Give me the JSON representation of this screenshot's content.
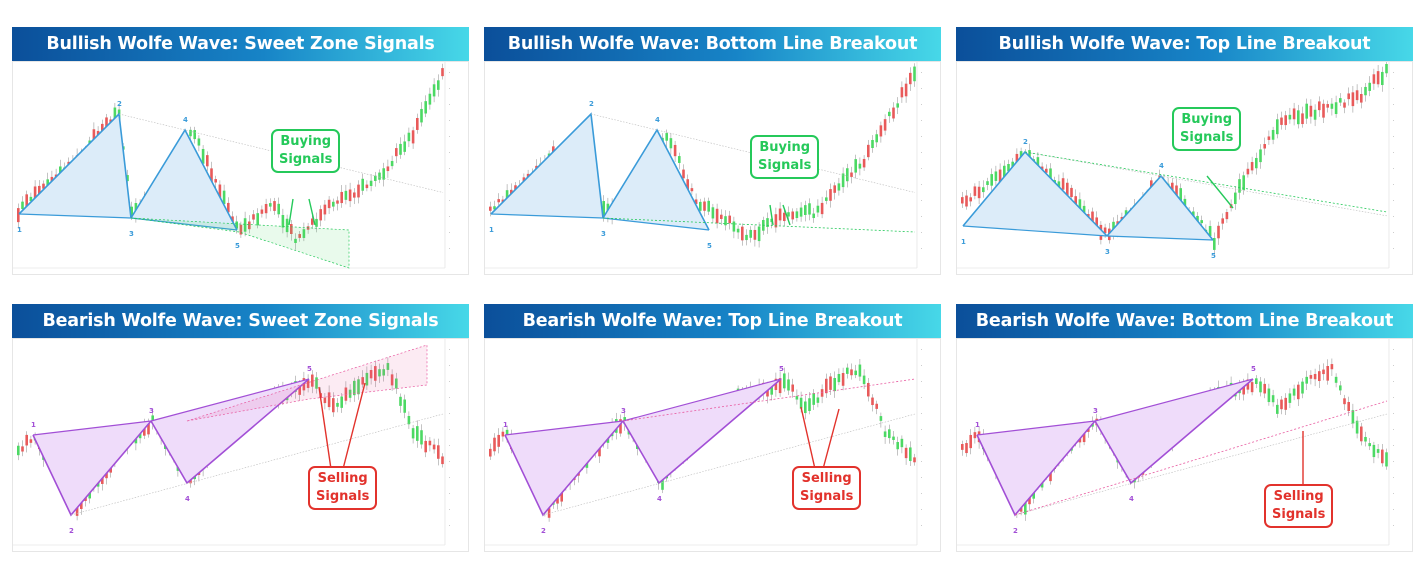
{
  "panels": [
    {
      "title": "Bullish Wolfe Wave: Sweet Zone Signals",
      "kind": "bullish",
      "signal": "Buying\nSignals",
      "signal_lines": [
        "Buying",
        "Signals"
      ],
      "wave_labels": [
        "1",
        "2",
        "3",
        "4",
        "5"
      ]
    },
    {
      "title": "Bullish Wolfe Wave: Bottom Line Breakout",
      "kind": "bullish",
      "signal_lines": [
        "Buying",
        "Signals"
      ],
      "wave_labels": [
        "1",
        "2",
        "3",
        "4",
        "5"
      ]
    },
    {
      "title": "Bullish Wolfe Wave: Top Line Breakout",
      "kind": "bullish",
      "signal_lines": [
        "Buying",
        "Signals"
      ],
      "wave_labels": [
        "1",
        "2",
        "3",
        "4",
        "5"
      ]
    },
    {
      "title": "Bearish Wolfe Wave: Sweet Zone Signals",
      "kind": "bearish",
      "signal_lines": [
        "Selling",
        "Signals"
      ],
      "wave_labels": [
        "1",
        "2",
        "3",
        "4",
        "5"
      ]
    },
    {
      "title": "Bearish Wolfe Wave: Top Line Breakout",
      "kind": "bearish",
      "signal_lines": [
        "Selling",
        "Signals"
      ],
      "wave_labels": [
        "1",
        "2",
        "3",
        "4",
        "5"
      ]
    },
    {
      "title": "Bearish Wolfe Wave: Bottom Line Breakout",
      "kind": "bearish",
      "signal_lines": [
        "Selling",
        "Signals"
      ],
      "wave_labels": [
        "1",
        "2",
        "3",
        "4",
        "5"
      ]
    }
  ],
  "colors": {
    "bull_candle": "#4cd964",
    "bear_candle": "#e85a5a",
    "bull_wave": "#3a9bd9",
    "bull_fill": "#dcecf9",
    "bear_wave": "#a24fd6",
    "bear_fill": "#efdcfa",
    "buy": "#25c95a",
    "sell": "#e2322c"
  },
  "chart_data": [
    {
      "type": "candlestick",
      "title": "Bullish Wolfe Wave: Sweet Zone Signals",
      "pattern": "bullish_wolfe_wave",
      "signal": "sweet_zone",
      "points": [
        [
          1,
          210
        ],
        [
          2,
          130
        ],
        [
          3,
          225
        ],
        [
          4,
          150
        ],
        [
          5,
          240
        ]
      ]
    },
    {
      "type": "candlestick",
      "title": "Bullish Wolfe Wave: Bottom Line Breakout",
      "pattern": "bullish_wolfe_wave",
      "signal": "bottom_line_breakout"
    },
    {
      "type": "candlestick",
      "title": "Bullish Wolfe Wave: Top Line Breakout",
      "pattern": "bullish_wolfe_wave",
      "signal": "top_line_breakout"
    },
    {
      "type": "candlestick",
      "title": "Bearish Wolfe Wave: Sweet Zone Signals",
      "pattern": "bearish_wolfe_wave",
      "signal": "sweet_zone"
    },
    {
      "type": "candlestick",
      "title": "Bearish Wolfe Wave: Top Line Breakout",
      "pattern": "bearish_wolfe_wave",
      "signal": "top_line_breakout"
    },
    {
      "type": "candlestick",
      "title": "Bearish Wolfe Wave: Bottom Line Breakout",
      "pattern": "bearish_wolfe_wave",
      "signal": "bottom_line_breakout"
    }
  ]
}
